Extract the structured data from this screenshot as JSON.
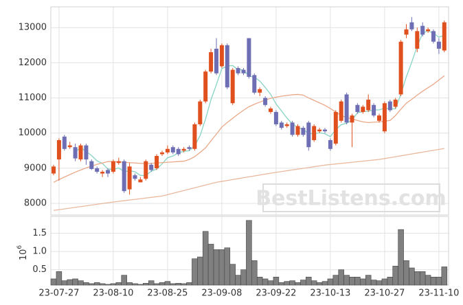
{
  "chart_data": [
    {
      "type": "candlestick",
      "open": [
        8850,
        9250,
        9900,
        9600,
        9600,
        9250,
        9650,
        9200,
        9000,
        8850,
        8950,
        8900,
        9150,
        9200,
        8400,
        8800,
        8600,
        8700,
        9100,
        9000,
        9400,
        9450,
        9600,
        9550,
        9500,
        9600,
        9550,
        10250,
        10900,
        11750,
        12400,
        11900,
        12500,
        10850,
        11850,
        11800,
        12700,
        11650,
        11150,
        11000,
        10600,
        10600,
        10300,
        10200,
        10300,
        9950,
        10150,
        10300,
        9800,
        10050,
        10100,
        9800,
        9700,
        10350,
        11100,
        10300,
        10800,
        10600,
        10650,
        10800,
        10350,
        10050,
        10900,
        10750,
        11100,
        12800,
        13150,
        12400,
        13050,
        12900,
        12900,
        12600,
        12350
      ],
      "high": [
        9100,
        9850,
        9950,
        9750,
        9700,
        9700,
        9700,
        9250,
        9050,
        8950,
        9000,
        9250,
        9300,
        9250,
        9150,
        8850,
        8750,
        9250,
        9150,
        9400,
        9500,
        9650,
        9650,
        9600,
        9600,
        9650,
        10300,
        10950,
        11800,
        12400,
        12700,
        12550,
        12550,
        11850,
        11900,
        11850,
        12700,
        11700,
        11300,
        11050,
        10750,
        10650,
        10350,
        10300,
        10350,
        10250,
        10200,
        10350,
        10250,
        10150,
        10150,
        9850,
        10650,
        10950,
        11150,
        10550,
        10850,
        10800,
        11100,
        10850,
        10550,
        10900,
        10950,
        11000,
        12650,
        13100,
        13300,
        13000,
        13150,
        13000,
        12950,
        12700,
        13200
      ],
      "low": [
        8800,
        8650,
        9500,
        9550,
        9200,
        9200,
        9100,
        8950,
        8850,
        8750,
        8750,
        8850,
        9100,
        8300,
        8250,
        8650,
        8600,
        8650,
        8900,
        8950,
        9350,
        9400,
        9400,
        9350,
        9450,
        9500,
        9500,
        10200,
        10850,
        11700,
        11650,
        11850,
        11250,
        10800,
        11650,
        11650,
        11550,
        11100,
        11050,
        10750,
        10550,
        10200,
        10100,
        10150,
        9900,
        9900,
        9900,
        9500,
        9750,
        10000,
        10000,
        9500,
        9650,
        10300,
        10250,
        9600,
        10550,
        10550,
        10600,
        10450,
        10300,
        10000,
        10600,
        10700,
        11050,
        12700,
        12900,
        12300,
        12750,
        12850,
        12550,
        12250,
        12300
      ],
      "close": [
        9050,
        9800,
        9550,
        9650,
        9280,
        9650,
        9250,
        8980,
        8900,
        8900,
        8850,
        9200,
        9200,
        8350,
        9050,
        8700,
        8680,
        9200,
        8950,
        9350,
        9450,
        9550,
        9450,
        9400,
        9550,
        9550,
        10250,
        10900,
        11750,
        12300,
        11700,
        12500,
        11300,
        11800,
        11700,
        11700,
        11600,
        11150,
        11250,
        10800,
        10700,
        10250,
        10150,
        10250,
        9950,
        10200,
        9950,
        9600,
        10200,
        10100,
        10050,
        9550,
        10600,
        10900,
        10300,
        10500,
        10600,
        10750,
        10950,
        10500,
        10500,
        10850,
        10650,
        10950,
        12600,
        12950,
        12950,
        12900,
        12800,
        12950,
        12600,
        12400,
        13150
      ],
      "up_color": "#e0501e",
      "down_color": "#6e6eb4",
      "lines": [
        {
          "color": "#86d4c4",
          "values": [
            null,
            null,
            null,
            null,
            9466,
            9586,
            9476,
            9362,
            9212,
            9136,
            8976,
            8966,
            9010,
            8900,
            8930,
            8900,
            8796,
            8796,
            8916,
            8976,
            9126,
            9300,
            9350,
            9440,
            9480,
            9500,
            9640,
            9930,
            10400,
            10950,
            11380,
            11830,
            11910,
            11920,
            11800,
            11800,
            11620,
            11590,
            11480,
            11300,
            11100,
            10830,
            10630,
            10430,
            10260,
            10160,
            10100,
            9990,
            9980,
            10010,
            9980,
            9900,
            10100,
            10240,
            10280,
            10370,
            10580,
            10610,
            10620,
            10660,
            10660,
            10710,
            10690,
            10690,
            11110,
            11600,
            12020,
            12470,
            12840,
            12910,
            12840,
            12730,
            12780
          ]
        },
        {
          "color": "#eaa888",
          "values": [
            8600,
            8680,
            8750,
            8820,
            8890,
            8950,
            9010,
            9060,
            9110,
            9150,
            9190,
            9190,
            9180,
            9170,
            9160,
            9150,
            9140,
            9130,
            9140,
            9150,
            9160,
            9170,
            9180,
            9190,
            9200,
            9250,
            9330,
            9450,
            9580,
            9780,
            9970,
            10170,
            10300,
            10420,
            10540,
            10650,
            10750,
            10820,
            10880,
            10940,
            10990,
            11020,
            11050,
            11070,
            11090,
            11100,
            11080,
            11000,
            10930,
            10860,
            10790,
            10700,
            10600,
            10500,
            10440,
            10400,
            10360,
            10320,
            10300,
            10310,
            10320,
            10340,
            10360,
            10500,
            10680,
            10850,
            10960,
            11080,
            11190,
            11290,
            11390,
            11510,
            11630
          ]
        },
        {
          "color": "#eab89c",
          "values": [
            7800,
            7822,
            7844,
            7866,
            7888,
            7910,
            7932,
            7954,
            7976,
            7998,
            8020,
            8039,
            8058,
            8077,
            8096,
            8115,
            8134,
            8153,
            8172,
            8191,
            8210,
            8249,
            8288,
            8327,
            8366,
            8405,
            8444,
            8483,
            8522,
            8561,
            8600,
            8626,
            8652,
            8678,
            8704,
            8730,
            8756,
            8782,
            8808,
            8834,
            8860,
            8883,
            8906,
            8929,
            8952,
            8975,
            8998,
            9021,
            9044,
            9067,
            9090,
            9106,
            9122,
            9138,
            9154,
            9170,
            9186,
            9202,
            9218,
            9234,
            9250,
            9276,
            9302,
            9328,
            9354,
            9380,
            9406,
            9432,
            9458,
            9484,
            9510,
            9536,
            9562
          ]
        }
      ],
      "ylim": [
        7670,
        13590
      ],
      "yticks": [
        8000,
        9000,
        10000,
        11000,
        12000,
        13000
      ],
      "grid": true,
      "watermark": "BestListens.com"
    },
    {
      "type": "bar",
      "categories": [
        null,
        "23-07-27",
        null,
        null,
        null,
        null,
        null,
        null,
        null,
        null,
        null,
        "23-08-10",
        null,
        null,
        null,
        null,
        null,
        null,
        null,
        null,
        null,
        "23-08-25",
        null,
        null,
        null,
        null,
        null,
        null,
        null,
        null,
        null,
        "23-09-08",
        null,
        null,
        null,
        null,
        null,
        null,
        null,
        null,
        null,
        "23-09-22",
        null,
        null,
        null,
        null,
        null,
        null,
        null,
        null,
        null,
        "23-10-13",
        null,
        null,
        null,
        null,
        null,
        null,
        null,
        null,
        null,
        "23-10-27",
        null,
        null,
        null,
        null,
        null,
        null,
        null,
        null,
        null,
        "23-11-10",
        null
      ],
      "values": [
        0.25,
        0.45,
        0.2,
        0.23,
        0.25,
        0.2,
        0.15,
        0.12,
        0.15,
        0.12,
        0.1,
        0.12,
        0.15,
        0.35,
        0.15,
        0.12,
        0.1,
        0.13,
        0.2,
        0.12,
        0.15,
        0.18,
        0.12,
        0.13,
        0.12,
        0.15,
        0.8,
        0.85,
        1.55,
        1.2,
        1.05,
        1.05,
        1.1,
        0.65,
        0.35,
        0.5,
        1.85,
        0.75,
        0.3,
        0.25,
        0.2,
        0.3,
        0.15,
        0.18,
        0.2,
        0.15,
        0.22,
        0.3,
        0.2,
        0.15,
        0.18,
        0.25,
        0.35,
        0.5,
        0.35,
        0.3,
        0.3,
        0.25,
        0.35,
        0.22,
        0.2,
        0.25,
        0.3,
        0.6,
        1.6,
        0.75,
        0.55,
        0.45,
        0.45,
        0.35,
        0.3,
        0.3,
        0.58
      ],
      "color": "#808080",
      "ylim": [
        0.08,
        1.96
      ],
      "yticks": [
        0.5,
        {
          "value": 1,
          "label": "1.0"
        },
        1.5
      ],
      "grid": true,
      "ylabel": "10",
      "ylabel_exponent": "6"
    }
  ]
}
